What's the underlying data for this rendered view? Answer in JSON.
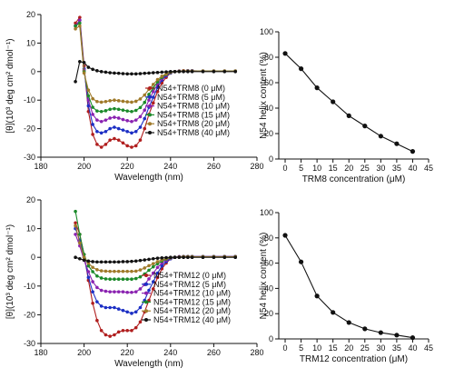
{
  "chart_data": [
    {
      "type": "line",
      "panel": "top-left",
      "title": "",
      "xlabel": "Wavelength (nm)",
      "ylabel": "[θ](10³ deg cm² dmol⁻¹)",
      "xlim": [
        180,
        280
      ],
      "ylim": [
        -30,
        20
      ],
      "xticks": [
        180,
        200,
        220,
        240,
        260,
        280
      ],
      "yticks": [
        -30,
        -20,
        -10,
        0,
        10,
        20
      ],
      "grid": false,
      "legend_position": "center-right",
      "x": [
        196,
        198,
        200,
        202,
        204,
        206,
        208,
        210,
        212,
        214,
        216,
        218,
        220,
        222,
        224,
        226,
        228,
        230,
        232,
        234,
        236,
        238,
        240,
        242,
        244,
        246,
        248,
        250,
        255,
        260,
        265,
        270
      ],
      "series": [
        {
          "name": "N54+TRM8 (0 μM)",
          "color": "#b01e1e",
          "values": [
            17,
            19,
            2,
            -14,
            -22,
            -25.5,
            -26.5,
            -25.5,
            -24,
            -23.5,
            -24,
            -25,
            -26,
            -26.5,
            -26,
            -24,
            -20,
            -15,
            -11,
            -7,
            -4,
            -2,
            -0.5,
            0,
            0.2,
            0.3,
            0.3,
            0.3,
            0.2,
            0.2,
            0.2,
            0.2
          ]
        },
        {
          "name": "N54+TRM8 (5 μM)",
          "color": "#1c2fc4",
          "values": [
            16,
            18,
            1,
            -12,
            -18.5,
            -21,
            -21.5,
            -21,
            -20,
            -19.5,
            -20,
            -20.5,
            -21,
            -21.5,
            -21,
            -19.5,
            -16.5,
            -12.5,
            -9,
            -5.5,
            -3,
            -1.5,
            -0.5,
            0,
            0.2,
            0.2,
            0.3,
            0.3,
            0.2,
            0.2,
            0.2,
            0.2
          ]
        },
        {
          "name": "N54+TRM8 (10 μM)",
          "color": "#8a22b0",
          "values": [
            16,
            18,
            0.5,
            -10,
            -15,
            -17,
            -17.5,
            -17,
            -16.3,
            -16,
            -16.3,
            -16.8,
            -17.2,
            -17.5,
            -17,
            -15.8,
            -13.5,
            -10,
            -7,
            -4.5,
            -2.5,
            -1.2,
            -0.4,
            0,
            0.2,
            0.2,
            0.2,
            0.2,
            0.2,
            0.2,
            0.2,
            0.2
          ]
        },
        {
          "name": "N54+TRM8 (15 μM)",
          "color": "#1b8a2a",
          "values": [
            16,
            17,
            0,
            -8.5,
            -12.5,
            -13.8,
            -14,
            -13.7,
            -13.2,
            -13,
            -13.2,
            -13.5,
            -13.8,
            -14,
            -13.6,
            -12.6,
            -10.8,
            -8,
            -5.8,
            -3.6,
            -2,
            -1,
            -0.3,
            0,
            0.1,
            0.2,
            0.2,
            0.2,
            0.2,
            0.2,
            0.2,
            0.2
          ]
        },
        {
          "name": "N54+TRM8 (20 μM)",
          "color": "#a07a2a",
          "values": [
            15,
            16,
            -0.5,
            -6.5,
            -9.5,
            -10.5,
            -10.7,
            -10.5,
            -10.2,
            -10,
            -10.2,
            -10.4,
            -10.6,
            -10.7,
            -10.4,
            -9.6,
            -8.2,
            -6.2,
            -4.5,
            -2.8,
            -1.6,
            -0.8,
            -0.2,
            0,
            0.1,
            0.2,
            0.2,
            0.2,
            0.2,
            0.2,
            0.2,
            0.2
          ]
        },
        {
          "name": "N54+TRM8 (40 μM)",
          "color": "#111111",
          "values": [
            -3.5,
            3.5,
            3.2,
            1.5,
            0.8,
            0.3,
            0,
            -0.2,
            -0.4,
            -0.5,
            -0.6,
            -0.7,
            -0.8,
            -0.8,
            -0.8,
            -0.7,
            -0.6,
            -0.5,
            -0.4,
            -0.3,
            -0.2,
            -0.1,
            0,
            0,
            0,
            0,
            0,
            0,
            0,
            0,
            0,
            0
          ]
        }
      ]
    },
    {
      "type": "line",
      "panel": "top-right",
      "title": "",
      "xlabel": "TRM8 concentration (μM)",
      "ylabel": "N54 helix content (%)",
      "xlim": [
        -2,
        45
      ],
      "ylim": [
        0,
        100
      ],
      "xticks": [
        0,
        5,
        10,
        15,
        20,
        25,
        30,
        35,
        40,
        45
      ],
      "yticks": [
        0,
        20,
        40,
        60,
        80,
        100
      ],
      "grid": false,
      "x": [
        0,
        5,
        10,
        15,
        20,
        25,
        30,
        35,
        40
      ],
      "series": [
        {
          "color": "#111111",
          "values": [
            83,
            71,
            56,
            45,
            34,
            26,
            18,
            12,
            6
          ]
        }
      ]
    },
    {
      "type": "line",
      "panel": "bottom-left",
      "title": "",
      "xlabel": "Wavelength (nm)",
      "ylabel": "[θ](10³ deg cm² dmol⁻¹)",
      "xlim": [
        180,
        280
      ],
      "ylim": [
        -30,
        20
      ],
      "xticks": [
        180,
        200,
        220,
        240,
        260,
        280
      ],
      "yticks": [
        -30,
        -20,
        -10,
        0,
        10,
        20
      ],
      "grid": false,
      "legend_position": "center-right",
      "x": [
        196,
        198,
        200,
        202,
        204,
        206,
        208,
        210,
        212,
        214,
        216,
        218,
        220,
        222,
        224,
        226,
        228,
        230,
        232,
        234,
        236,
        238,
        240,
        242,
        244,
        246,
        248,
        250,
        255,
        260,
        265,
        270
      ],
      "series": [
        {
          "name": "N54+TRM12 (0 μM)",
          "color": "#b01e1e",
          "values": [
            12,
            8,
            1,
            -8,
            -16,
            -22,
            -25.5,
            -27,
            -27.5,
            -27,
            -26,
            -25.5,
            -25.5,
            -25.5,
            -24.5,
            -22.5,
            -19,
            -15,
            -11,
            -7,
            -4,
            -2,
            -0.5,
            0,
            0.2,
            0.3,
            0.3,
            0.3,
            0.3,
            0.3,
            0.3,
            0.3
          ]
        },
        {
          "name": "N54+TRM12 (5 μM)",
          "color": "#1c2fc4",
          "values": [
            10,
            6,
            0,
            -7,
            -12,
            -15.5,
            -17,
            -17.5,
            -17.5,
            -17.5,
            -18,
            -18.5,
            -19,
            -19.5,
            -19,
            -17.5,
            -15,
            -11.5,
            -8.5,
            -5.5,
            -3,
            -1.5,
            -0.5,
            0,
            0.2,
            0.3,
            0.3,
            0.3,
            0.3,
            0.3,
            0.3,
            0.3
          ]
        },
        {
          "name": "N54+TRM12 (10 μM)",
          "color": "#8a22b0",
          "values": [
            8,
            4,
            -1,
            -5,
            -8.5,
            -10.5,
            -11.5,
            -11.8,
            -12,
            -12,
            -12,
            -12,
            -12.2,
            -12.2,
            -12,
            -11,
            -9.5,
            -7.5,
            -5.5,
            -3.5,
            -2,
            -1,
            -0.3,
            0,
            0.2,
            0.2,
            0.2,
            0.2,
            0.2,
            0.2,
            0.2,
            0.2
          ]
        },
        {
          "name": "N54+TRM12 (15 μM)",
          "color": "#1b8a2a",
          "values": [
            16,
            8,
            1,
            -3,
            -5,
            -6.5,
            -7.2,
            -7.5,
            -7.6,
            -7.6,
            -7.6,
            -7.6,
            -7.6,
            -7.6,
            -7.4,
            -6.8,
            -5.8,
            -4.5,
            -3.3,
            -2.2,
            -1.3,
            -0.6,
            -0.2,
            0,
            0.1,
            0.2,
            0.2,
            0.2,
            0.2,
            0.2,
            0.2,
            0.2
          ]
        },
        {
          "name": "N54+TRM12 (20 μM)",
          "color": "#a07a2a",
          "values": [
            11,
            5,
            0,
            -2,
            -3.5,
            -4.3,
            -4.7,
            -4.8,
            -4.9,
            -4.9,
            -4.9,
            -4.9,
            -4.9,
            -4.9,
            -4.8,
            -4.4,
            -3.7,
            -2.9,
            -2.2,
            -1.5,
            -0.9,
            -0.4,
            -0.1,
            0,
            0.1,
            0.2,
            0.2,
            0.2,
            0.2,
            0.2,
            0.2,
            0.2
          ]
        },
        {
          "name": "N54+TRM12 (40 μM)",
          "color": "#111111",
          "values": [
            0,
            -0.5,
            -1,
            -1.3,
            -1.5,
            -1.6,
            -1.6,
            -1.6,
            -1.6,
            -1.6,
            -1.6,
            -1.5,
            -1.5,
            -1.4,
            -1.3,
            -1.1,
            -0.9,
            -0.7,
            -0.5,
            -0.3,
            -0.2,
            -0.1,
            0,
            0,
            0,
            0,
            0,
            0,
            0,
            0,
            0,
            0
          ]
        }
      ]
    },
    {
      "type": "line",
      "panel": "bottom-right",
      "title": "",
      "xlabel": "TRM12 concentration (μM)",
      "ylabel": "N54 helix content (%)",
      "xlim": [
        -2,
        45
      ],
      "ylim": [
        0,
        100
      ],
      "xticks": [
        0,
        5,
        10,
        15,
        20,
        25,
        30,
        35,
        40,
        45
      ],
      "yticks": [
        0,
        20,
        40,
        60,
        80,
        100
      ],
      "grid": false,
      "x": [
        0,
        5,
        10,
        15,
        20,
        25,
        30,
        35,
        40
      ],
      "series": [
        {
          "color": "#111111",
          "values": [
            82,
            61,
            34,
            21,
            13,
            8,
            5,
            3,
            1
          ]
        }
      ]
    }
  ]
}
